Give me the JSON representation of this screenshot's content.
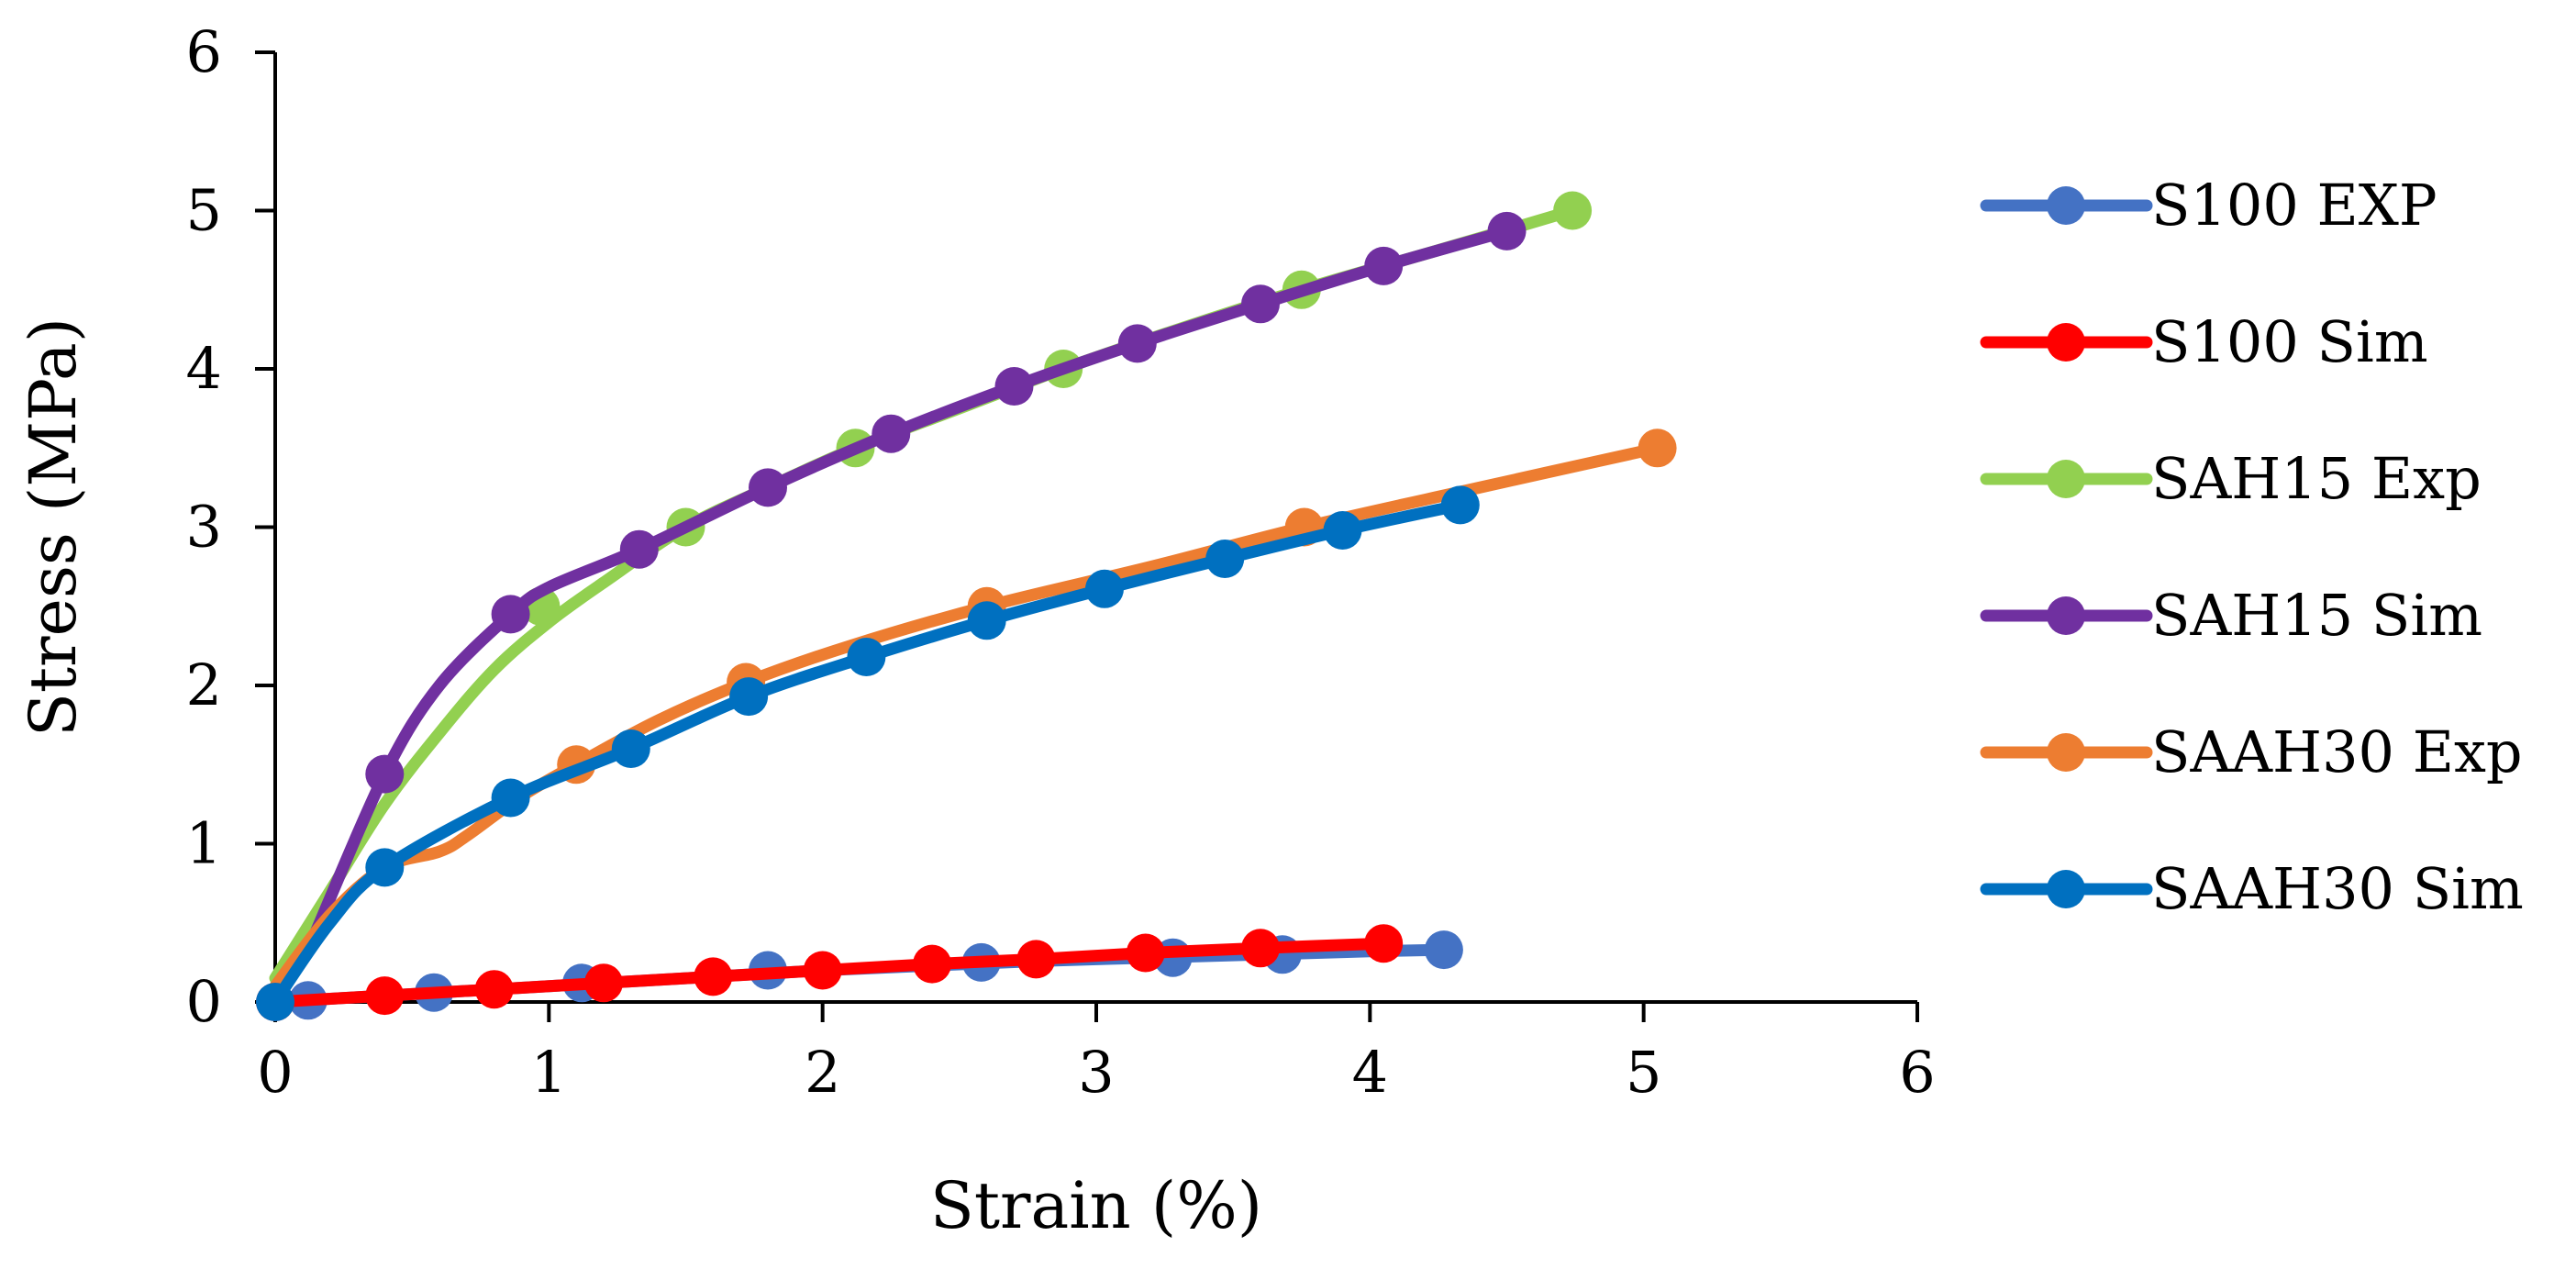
{
  "chart_data": {
    "type": "line",
    "title": "",
    "xlabel": "Strain (%)",
    "ylabel": "Stress (MPa)",
    "xlim": [
      0,
      6
    ],
    "ylim": [
      0,
      6
    ],
    "xticks": [
      0,
      1,
      2,
      3,
      4,
      5,
      6
    ],
    "yticks": [
      0,
      1,
      2,
      3,
      4,
      5,
      6
    ],
    "grid": false,
    "legend_position": "right",
    "series": [
      {
        "name": "S100 EXP",
        "color": "#4472C4",
        "curve": [
          [
            0,
            0
          ],
          [
            0.4,
            0.04
          ],
          [
            0.8,
            0.08
          ],
          [
            1.2,
            0.12
          ],
          [
            1.6,
            0.16
          ],
          [
            2.0,
            0.2
          ],
          [
            2.4,
            0.23
          ],
          [
            2.8,
            0.26
          ],
          [
            3.2,
            0.28
          ],
          [
            3.6,
            0.3
          ],
          [
            4.0,
            0.32
          ],
          [
            4.27,
            0.33
          ]
        ],
        "markers": [
          [
            0.12,
            0.01
          ],
          [
            0.58,
            0.06
          ],
          [
            1.12,
            0.12
          ],
          [
            1.8,
            0.2
          ],
          [
            2.58,
            0.25
          ],
          [
            3.28,
            0.28
          ],
          [
            3.68,
            0.3
          ],
          [
            4.27,
            0.33
          ]
        ]
      },
      {
        "name": "S100 Sim",
        "color": "#FF0000",
        "curve": [
          [
            0,
            0
          ],
          [
            0.4,
            0.04
          ],
          [
            0.8,
            0.08
          ],
          [
            1.2,
            0.12
          ],
          [
            1.6,
            0.16
          ],
          [
            2.0,
            0.2
          ],
          [
            2.4,
            0.24
          ],
          [
            2.78,
            0.27
          ],
          [
            3.18,
            0.31
          ],
          [
            3.6,
            0.34
          ],
          [
            4.05,
            0.37
          ]
        ],
        "markers": [
          [
            0,
            0
          ],
          [
            0.4,
            0.04
          ],
          [
            0.8,
            0.08
          ],
          [
            1.2,
            0.12
          ],
          [
            1.6,
            0.16
          ],
          [
            2.0,
            0.2
          ],
          [
            2.4,
            0.24
          ],
          [
            2.78,
            0.27
          ],
          [
            3.18,
            0.31
          ],
          [
            3.6,
            0.34
          ],
          [
            4.05,
            0.37
          ]
        ]
      },
      {
        "name": "SAH15 Exp",
        "color": "#92D050",
        "curve": [
          [
            0,
            0.15
          ],
          [
            0.2,
            0.7
          ],
          [
            0.4,
            1.25
          ],
          [
            0.6,
            1.7
          ],
          [
            0.8,
            2.1
          ],
          [
            1.0,
            2.4
          ],
          [
            1.2,
            2.65
          ],
          [
            1.5,
            3.0
          ],
          [
            1.8,
            3.25
          ],
          [
            2.12,
            3.5
          ],
          [
            2.5,
            3.75
          ],
          [
            2.88,
            4.0
          ],
          [
            3.3,
            4.25
          ],
          [
            3.75,
            4.5
          ],
          [
            4.25,
            4.75
          ],
          [
            4.74,
            5.0
          ]
        ],
        "markers": [
          [
            0.97,
            2.5
          ],
          [
            1.5,
            3.0
          ],
          [
            2.12,
            3.5
          ],
          [
            2.88,
            4.0
          ],
          [
            3.75,
            4.5
          ],
          [
            4.74,
            5.0
          ]
        ]
      },
      {
        "name": "SAH15 Sim",
        "color": "#7030A0",
        "curve": [
          [
            0.15,
            0.45
          ],
          [
            0.4,
            1.44
          ],
          [
            0.6,
            2.0
          ],
          [
            0.86,
            2.45
          ],
          [
            1.0,
            2.62
          ],
          [
            1.33,
            2.86
          ],
          [
            1.8,
            3.25
          ],
          [
            2.25,
            3.59
          ],
          [
            2.7,
            3.89
          ],
          [
            3.15,
            4.16
          ],
          [
            3.6,
            4.41
          ],
          [
            4.05,
            4.65
          ],
          [
            4.5,
            4.87
          ]
        ],
        "markers": [
          [
            0.4,
            1.44
          ],
          [
            0.86,
            2.45
          ],
          [
            1.33,
            2.86
          ],
          [
            1.8,
            3.25
          ],
          [
            2.25,
            3.59
          ],
          [
            2.7,
            3.89
          ],
          [
            3.15,
            4.16
          ],
          [
            3.6,
            4.41
          ],
          [
            4.05,
            4.65
          ],
          [
            4.5,
            4.87
          ]
        ]
      },
      {
        "name": "SAAH30 Exp",
        "color": "#ED7D31",
        "curve": [
          [
            0,
            0.1
          ],
          [
            0.2,
            0.55
          ],
          [
            0.4,
            0.85
          ],
          [
            0.6,
            0.95
          ],
          [
            0.7,
            1.05
          ],
          [
            0.9,
            1.3
          ],
          [
            1.1,
            1.5
          ],
          [
            1.4,
            1.78
          ],
          [
            1.72,
            2.02
          ],
          [
            2.1,
            2.25
          ],
          [
            2.6,
            2.5
          ],
          [
            3.2,
            2.75
          ],
          [
            3.76,
            3.0
          ],
          [
            4.4,
            3.25
          ],
          [
            5.05,
            3.5
          ]
        ],
        "markers": [
          [
            1.1,
            1.5
          ],
          [
            1.72,
            2.02
          ],
          [
            2.6,
            2.5
          ],
          [
            3.76,
            3.0
          ],
          [
            5.05,
            3.5
          ]
        ]
      },
      {
        "name": "SAAH30 Sim",
        "color": "#0070C0",
        "curve": [
          [
            0,
            0
          ],
          [
            0.2,
            0.5
          ],
          [
            0.4,
            0.85
          ],
          [
            0.86,
            1.29
          ],
          [
            1.3,
            1.6
          ],
          [
            1.73,
            1.93
          ],
          [
            2.16,
            2.18
          ],
          [
            2.6,
            2.41
          ],
          [
            3.03,
            2.61
          ],
          [
            3.47,
            2.8
          ],
          [
            3.9,
            2.98
          ],
          [
            4.33,
            3.14
          ]
        ],
        "markers": [
          [
            0,
            0
          ],
          [
            0.4,
            0.85
          ],
          [
            0.86,
            1.29
          ],
          [
            1.3,
            1.6
          ],
          [
            1.73,
            1.93
          ],
          [
            2.16,
            2.18
          ],
          [
            2.6,
            2.41
          ],
          [
            3.03,
            2.61
          ],
          [
            3.47,
            2.8
          ],
          [
            3.9,
            2.98
          ],
          [
            4.33,
            3.14
          ]
        ]
      }
    ]
  }
}
